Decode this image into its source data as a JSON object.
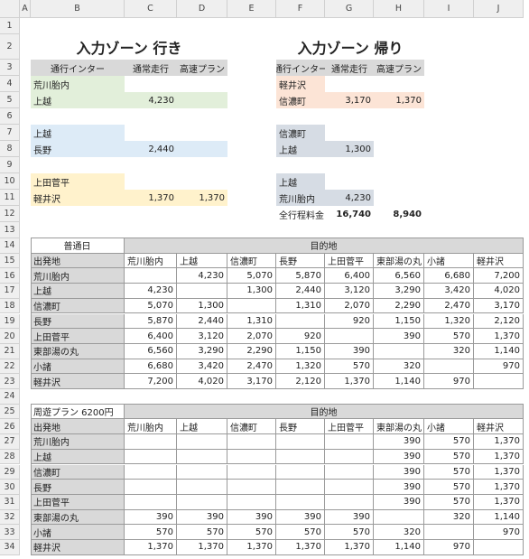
{
  "column_headers": [
    "A",
    "B",
    "C",
    "D",
    "E",
    "F",
    "G",
    "H",
    "I",
    "J"
  ],
  "rows": [
    {
      "number": 1
    },
    {
      "number": 2,
      "cells": {
        "B": "入力ゾーン 行き",
        "F": "入力ゾーン 帰り"
      }
    },
    {
      "number": 3,
      "cells": {
        "B": "通行インター",
        "C": "通常走行",
        "D": "高速プラン",
        "F": "通行インター",
        "G": "通常走行",
        "H": "高速プラン"
      }
    },
    {
      "number": 4,
      "cells": {
        "B": "荒川胎内",
        "F": "軽井沢"
      }
    },
    {
      "number": 5,
      "cells": {
        "B": "上越",
        "C": "4,230",
        "F": "信濃町",
        "G": "3,170",
        "H": "1,370"
      }
    },
    {
      "number": 6
    },
    {
      "number": 7,
      "cells": {
        "B": "上越",
        "F": "信濃町"
      }
    },
    {
      "number": 8,
      "cells": {
        "B": "長野",
        "C": "2,440",
        "F": "上越",
        "G": "1,300"
      }
    },
    {
      "number": 9
    },
    {
      "number": 10,
      "cells": {
        "B": "上田菅平",
        "F": "上越"
      }
    },
    {
      "number": 11,
      "cells": {
        "B": "軽井沢",
        "C": "1,370",
        "D": "1,370",
        "F": "荒川胎内",
        "G": "4,230"
      }
    },
    {
      "number": 12,
      "cells": {
        "F": "全行程料金",
        "G": "16,740",
        "H": "8,940"
      }
    },
    {
      "number": 13
    },
    {
      "number": 14,
      "cells": {
        "B": "普通日",
        "C": "目的地"
      }
    },
    {
      "number": 15,
      "cells": {
        "B": "出発地",
        "C": "荒川胎内",
        "D": "上越",
        "E": "信濃町",
        "F": "長野",
        "G": "上田菅平",
        "H": "東部湯の丸",
        "I": "小諸",
        "J": "軽井沢"
      }
    },
    {
      "number": 16,
      "cells": {
        "B": "荒川胎内",
        "D": "4,230",
        "E": "5,070",
        "F": "5,870",
        "G": "6,400",
        "H": "6,560",
        "I": "6,680",
        "J": "7,200"
      }
    },
    {
      "number": 17,
      "cells": {
        "B": "上越",
        "C": "4,230",
        "E": "1,300",
        "F": "2,440",
        "G": "3,120",
        "H": "3,290",
        "I": "3,420",
        "J": "4,020"
      }
    },
    {
      "number": 18,
      "cells": {
        "B": "信濃町",
        "C": "5,070",
        "D": "1,300",
        "F": "1,310",
        "G": "2,070",
        "H": "2,290",
        "I": "2,470",
        "J": "3,170"
      }
    },
    {
      "number": 19,
      "cells": {
        "B": "長野",
        "C": "5,870",
        "D": "2,440",
        "E": "1,310",
        "G": "920",
        "H": "1,150",
        "I": "1,320",
        "J": "2,120"
      }
    },
    {
      "number": 20,
      "cells": {
        "B": "上田菅平",
        "C": "6,400",
        "D": "3,120",
        "E": "2,070",
        "F": "920",
        "H": "390",
        "I": "570",
        "J": "1,370"
      }
    },
    {
      "number": 21,
      "cells": {
        "B": "東部湯の丸",
        "C": "6,560",
        "D": "3,290",
        "E": "2,290",
        "F": "1,150",
        "G": "390",
        "I": "320",
        "J": "1,140"
      }
    },
    {
      "number": 22,
      "cells": {
        "B": "小諸",
        "C": "6,680",
        "D": "3,420",
        "E": "2,470",
        "F": "1,320",
        "G": "570",
        "H": "320",
        "J": "970"
      }
    },
    {
      "number": 23,
      "cells": {
        "B": "軽井沢",
        "C": "7,200",
        "D": "4,020",
        "E": "3,170",
        "F": "2,120",
        "G": "1,370",
        "H": "1,140",
        "I": "970"
      }
    },
    {
      "number": 24
    },
    {
      "number": 25,
      "cells": {
        "B": "周遊プラン 6200円",
        "C": "目的地"
      }
    },
    {
      "number": 26,
      "cells": {
        "B": "出発地",
        "C": "荒川胎内",
        "D": "上越",
        "E": "信濃町",
        "F": "長野",
        "G": "上田菅平",
        "H": "東部湯の丸",
        "I": "小諸",
        "J": "軽井沢"
      }
    },
    {
      "number": 27,
      "cells": {
        "B": "荒川胎内",
        "H": "390",
        "I": "570",
        "J": "1,370"
      }
    },
    {
      "number": 28,
      "cells": {
        "B": "上越",
        "H": "390",
        "I": "570",
        "J": "1,370"
      }
    },
    {
      "number": 29,
      "cells": {
        "B": "信濃町",
        "H": "390",
        "I": "570",
        "J": "1,370"
      }
    },
    {
      "number": 30,
      "cells": {
        "B": "長野",
        "H": "390",
        "I": "570",
        "J": "1,370"
      }
    },
    {
      "number": 31,
      "cells": {
        "B": "上田菅平",
        "H": "390",
        "I": "570",
        "J": "1,370"
      }
    },
    {
      "number": 32,
      "cells": {
        "B": "東部湯の丸",
        "C": "390",
        "D": "390",
        "E": "390",
        "F": "390",
        "G": "390",
        "I": "320",
        "J": "1,140"
      }
    },
    {
      "number": 33,
      "cells": {
        "B": "小諸",
        "C": "570",
        "D": "570",
        "E": "570",
        "F": "570",
        "G": "570",
        "H": "320",
        "J": "970"
      }
    },
    {
      "number": 34,
      "cells": {
        "B": "軽井沢",
        "C": "1,370",
        "D": "1,370",
        "E": "1,370",
        "F": "1,370",
        "G": "1,370",
        "H": "1,140",
        "I": "970"
      }
    }
  ]
}
